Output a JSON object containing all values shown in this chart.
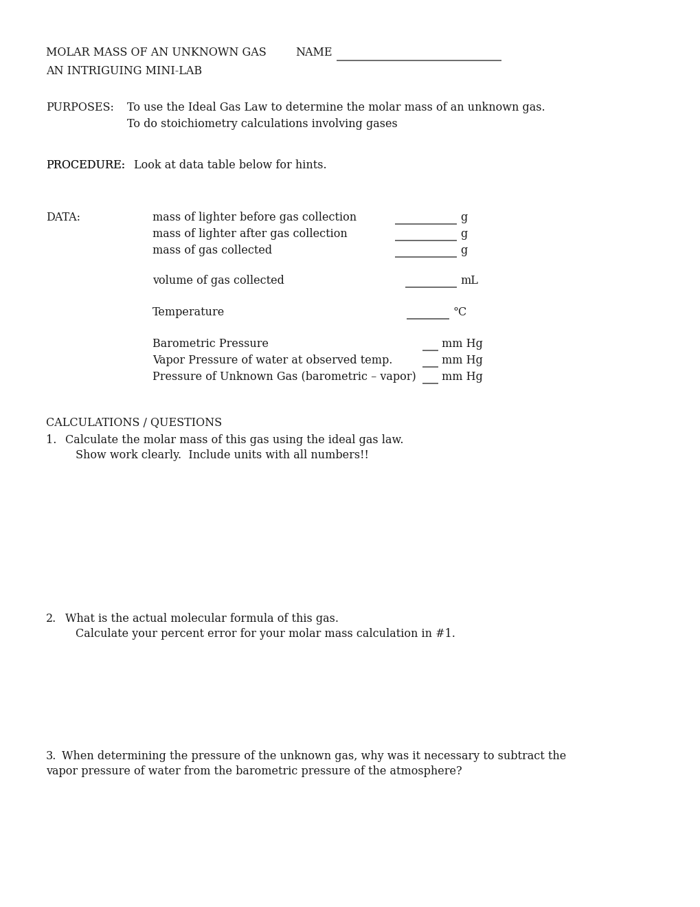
{
  "bg_color": "#ffffff",
  "text_color": "#1a1a1a",
  "title_line1": "MOLAR MASS OF AN UNKNOWN GAS",
  "title_name": "NAME",
  "title_line2": "AN INTRIGUING MINI-LAB",
  "purposes_label": "PURPOSES:",
  "purposes_line1": "To use the Ideal Gas Law to determine the molar mass of an unknown gas.",
  "purposes_line2": "To do stoichiometry calculations involving gases",
  "procedure_label": "PROCEDURE:",
  "procedure_text": "Look at data table below for hints.",
  "data_label": "DATA:",
  "data_items": [
    {
      "label": "mass of lighter before gas collection",
      "unit": "g",
      "short": false
    },
    {
      "label": "mass of lighter after gas collection",
      "unit": "g",
      "short": false
    },
    {
      "label": "mass of gas collected",
      "unit": "g",
      "short": false
    },
    {
      "label": "volume of gas collected",
      "unit": "mL",
      "short": false
    },
    {
      "label": "Temperature",
      "unit": "°C",
      "short": false
    },
    {
      "label": "Barometric Pressure",
      "unit": "mm Hg",
      "short": true
    },
    {
      "label": "Vapor Pressure of water at observed temp.",
      "unit": "mm Hg",
      "short": true
    },
    {
      "label": "Pressure of Unknown Gas (barometric – vapor)",
      "unit": "mm Hg",
      "short": true
    }
  ],
  "calc_header": "CALCULATIONS / QUESTIONS",
  "q1_num": "1.",
  "q1_line1": "Calculate the molar mass of this gas using the ideal gas law.",
  "q1_line2": "Show work clearly.  Include units with all numbers!!",
  "q2_num": "2.",
  "q2_line1": "What is the actual molecular formula of this gas.",
  "q2_line2": "Calculate your percent error for your molar mass calculation in #1.",
  "q3_num": "3.",
  "q3_line1": "When determining the pressure of the unknown gas, why was it necessary to subtract the",
  "q3_line2": "vapor pressure of water from the barometric pressure of the atmosphere?",
  "font_size": 11.5,
  "font_family": "DejaVu Serif"
}
